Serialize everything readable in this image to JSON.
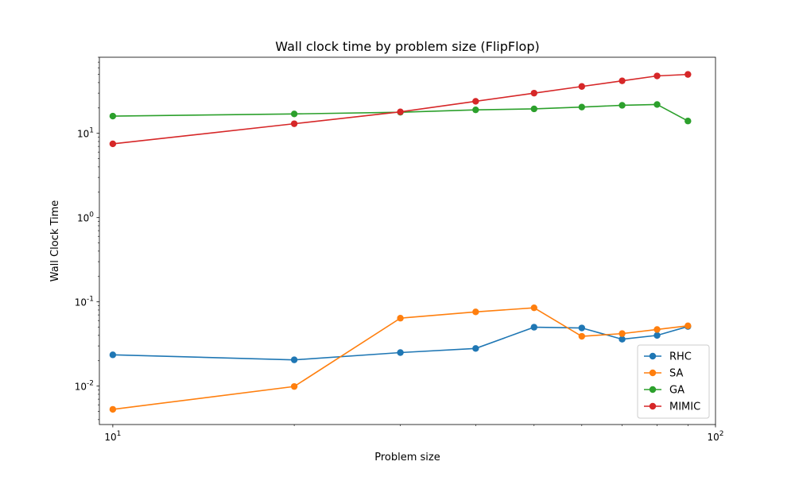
{
  "chart_data": {
    "type": "line",
    "title": "Wall clock time by problem size (FlipFlop)",
    "xlabel": "Problem size",
    "ylabel": "Wall Clock Time",
    "xscale": "log",
    "yscale": "log",
    "xlim": [
      9.5,
      100
    ],
    "ylim": [
      0.0035,
      80
    ],
    "x": [
      10,
      20,
      30,
      40,
      50,
      60,
      70,
      80,
      90
    ],
    "x_ticks": [
      {
        "value": 10,
        "label": "10^1"
      },
      {
        "value": 100,
        "label": "10^2"
      }
    ],
    "y_ticks": [
      {
        "value": 0.01,
        "label": "10^-2"
      },
      {
        "value": 0.1,
        "label": "10^-1"
      },
      {
        "value": 1,
        "label": "10^0"
      },
      {
        "value": 10,
        "label": "10^1"
      }
    ],
    "grid": false,
    "legend_position": "lower-right",
    "series": [
      {
        "name": "RHC",
        "color": "#1f77b4",
        "values": [
          0.0235,
          0.0205,
          0.025,
          0.028,
          0.05,
          0.049,
          0.036,
          0.04,
          0.051
        ]
      },
      {
        "name": "SA",
        "color": "#ff7f0e",
        "values": [
          0.0053,
          0.0099,
          0.064,
          0.076,
          0.085,
          0.039,
          0.042,
          0.047,
          0.052
        ]
      },
      {
        "name": "GA",
        "color": "#2ca02c",
        "values": [
          16.0,
          17.0,
          17.8,
          19.0,
          19.5,
          20.5,
          21.5,
          22.0,
          14.0
        ]
      },
      {
        "name": "MIMIC",
        "color": "#d62728",
        "values": [
          7.5,
          13.0,
          18.0,
          24.0,
          30.0,
          36.0,
          42.0,
          48.0,
          50.0
        ]
      }
    ]
  }
}
